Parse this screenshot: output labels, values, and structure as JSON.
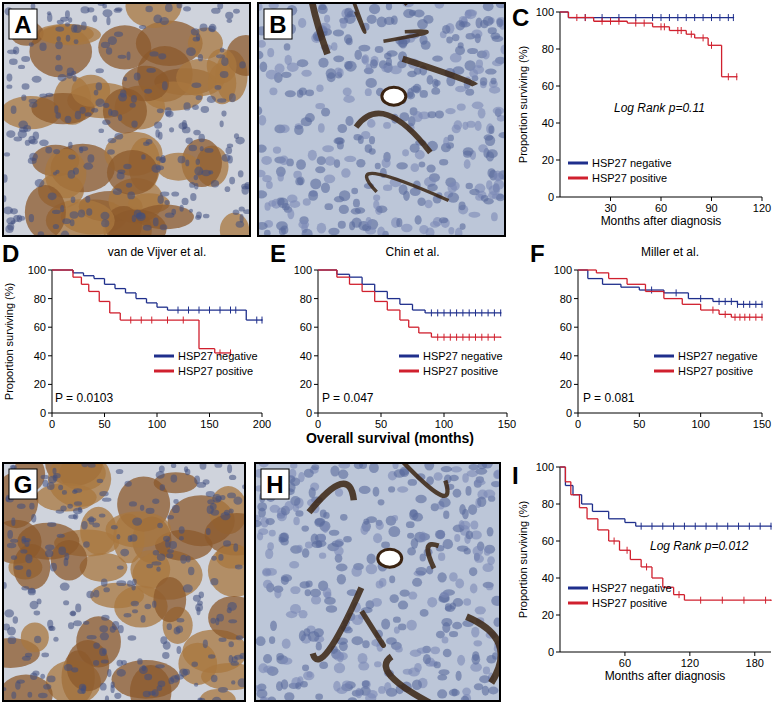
{
  "chart_data": [
    {
      "type": "line",
      "panel_label": "C",
      "xlabel": "Months after diagnosis",
      "ylabel": "Proportion surviving (%)",
      "xlim": [
        0,
        120
      ],
      "xticks": [
        30,
        60,
        90,
        120
      ],
      "ylim": [
        0,
        100
      ],
      "yticks": [
        0,
        20,
        40,
        60,
        80,
        100
      ],
      "annotation": "Log Rank p=0.11",
      "legend": "lower left",
      "line_style": "step",
      "series": [
        {
          "name": "HSP27 negative",
          "color": "#1f2f8c",
          "x": [
            0,
            5,
            103
          ],
          "values": [
            100,
            97,
            97
          ],
          "censored": [
            15,
            25,
            35,
            45,
            55,
            60,
            65,
            70,
            75,
            80,
            85,
            90,
            95,
            100,
            103
          ]
        },
        {
          "name": "HSP27 positive",
          "color": "#d0202e",
          "x": [
            0,
            5,
            20,
            40,
            55,
            65,
            75,
            80,
            88,
            96,
            105
          ],
          "values": [
            100,
            97,
            95,
            94,
            92,
            90,
            88,
            86,
            82,
            65,
            65
          ],
          "censored": [
            10,
            15,
            25,
            30,
            35,
            45,
            50,
            60,
            62,
            70,
            72,
            78,
            85,
            90,
            100,
            105
          ]
        }
      ]
    },
    {
      "type": "line",
      "panel_label": "D",
      "title": "van de Vijver et al.",
      "ylabel": "Proportion surviving (%)",
      "xlim": [
        0,
        200
      ],
      "xticks": [
        0,
        50,
        100,
        150,
        200
      ],
      "ylim": [
        0,
        100
      ],
      "yticks": [
        0,
        20,
        40,
        60,
        80,
        100
      ],
      "annotation": "P = 0.0103",
      "legend": "lower right",
      "line_style": "step",
      "series": [
        {
          "name": "HSP27 negative",
          "color": "#1f2f8c",
          "x": [
            0,
            20,
            30,
            40,
            50,
            60,
            70,
            80,
            90,
            100,
            110,
            185,
            200
          ],
          "values": [
            100,
            98,
            96,
            94,
            90,
            87,
            84,
            80,
            77,
            74,
            72,
            65,
            65
          ],
          "censored": [
            120,
            130,
            140,
            150,
            160,
            170,
            175,
            195,
            200
          ]
        },
        {
          "name": "HSP27 positive",
          "color": "#d0202e",
          "x": [
            0,
            20,
            28,
            35,
            45,
            55,
            65,
            140,
            155,
            170
          ],
          "values": [
            100,
            95,
            90,
            85,
            78,
            70,
            65,
            45,
            42,
            42
          ],
          "censored": [
            75,
            85,
            95,
            110,
            125,
            160,
            170
          ]
        }
      ]
    },
    {
      "type": "line",
      "panel_label": "E",
      "title": "Chin et al.",
      "xlabel": "Overall survival (months)",
      "xlim": [
        0,
        150
      ],
      "xticks": [
        0,
        50,
        100,
        150
      ],
      "ylim": [
        0,
        100
      ],
      "yticks": [
        0,
        20,
        40,
        60,
        80,
        100
      ],
      "annotation": "P = 0.047",
      "legend": "lower right",
      "line_style": "step",
      "series": [
        {
          "name": "HSP27 negative",
          "color": "#1f2f8c",
          "x": [
            0,
            15,
            25,
            35,
            45,
            55,
            65,
            75,
            85,
            145
          ],
          "values": [
            100,
            97,
            95,
            90,
            85,
            80,
            76,
            72,
            70,
            70
          ],
          "censored": [
            90,
            95,
            100,
            105,
            110,
            115,
            120,
            125,
            130,
            135,
            140,
            145
          ]
        },
        {
          "name": "HSP27 positive",
          "color": "#d0202e",
          "x": [
            0,
            15,
            25,
            35,
            45,
            55,
            65,
            72,
            80,
            90,
            145
          ],
          "values": [
            100,
            95,
            90,
            85,
            78,
            72,
            65,
            60,
            56,
            53,
            53
          ],
          "censored": [
            95,
            100,
            105,
            110,
            115,
            120,
            125,
            130,
            135,
            140
          ]
        }
      ]
    },
    {
      "type": "line",
      "panel_label": "F",
      "title": "Miller et al.",
      "xlim": [
        0,
        150
      ],
      "xticks": [
        0,
        50,
        100,
        150
      ],
      "ylim": [
        0,
        100
      ],
      "yticks": [
        0,
        20,
        40,
        60,
        80,
        100
      ],
      "annotation": "P = 0.081",
      "legend": "lower right",
      "line_style": "step",
      "series": [
        {
          "name": "HSP27 negative",
          "color": "#1f2f8c",
          "x": [
            0,
            8,
            20,
            35,
            50,
            70,
            90,
            110,
            130,
            150
          ],
          "values": [
            100,
            94,
            90,
            88,
            86,
            84,
            80,
            78,
            76,
            76
          ],
          "censored": [
            60,
            80,
            100,
            115,
            120,
            125,
            130,
            135,
            140,
            145,
            150
          ]
        },
        {
          "name": "HSP27 positive",
          "color": "#d0202e",
          "x": [
            0,
            15,
            25,
            40,
            55,
            70,
            85,
            100,
            115,
            125,
            150
          ],
          "values": [
            100,
            98,
            94,
            90,
            85,
            80,
            76,
            72,
            69,
            67,
            67
          ],
          "censored": [
            110,
            120,
            128,
            132,
            136,
            140,
            145,
            150
          ]
        }
      ]
    },
    {
      "type": "line",
      "panel_label": "I",
      "xlabel": "Months after diagnosis",
      "ylabel": "Proportion surviving (%)",
      "xlim": [
        0,
        195
      ],
      "xticks": [
        60,
        120,
        180
      ],
      "ylim": [
        0,
        100
      ],
      "yticks": [
        0,
        20,
        40,
        60,
        80,
        100
      ],
      "annotation": "Log Rank p=0.012",
      "legend": "lower left",
      "line_style": "step",
      "series": [
        {
          "name": "HSP27 negative",
          "color": "#1f2f8c",
          "x": [
            0,
            5,
            12,
            20,
            30,
            45,
            60,
            70,
            195
          ],
          "values": [
            100,
            90,
            85,
            80,
            76,
            72,
            70,
            68,
            68
          ],
          "censored": [
            75,
            85,
            95,
            105,
            115,
            125,
            135,
            145,
            155,
            165,
            175,
            185,
            195
          ]
        },
        {
          "name": "HSP27 positive",
          "color": "#d0202e",
          "x": [
            0,
            5,
            10,
            18,
            25,
            35,
            45,
            55,
            65,
            75,
            85,
            95,
            105,
            115,
            195
          ],
          "values": [
            100,
            92,
            85,
            78,
            72,
            66,
            60,
            55,
            50,
            46,
            40,
            35,
            31,
            28,
            28
          ],
          "censored": [
            50,
            62,
            80,
            110,
            130,
            150,
            170,
            190
          ]
        }
      ]
    }
  ],
  "images": [
    {
      "panel_label": "A"
    },
    {
      "panel_label": "B"
    },
    {
      "panel_label": "G"
    },
    {
      "panel_label": "H"
    }
  ]
}
